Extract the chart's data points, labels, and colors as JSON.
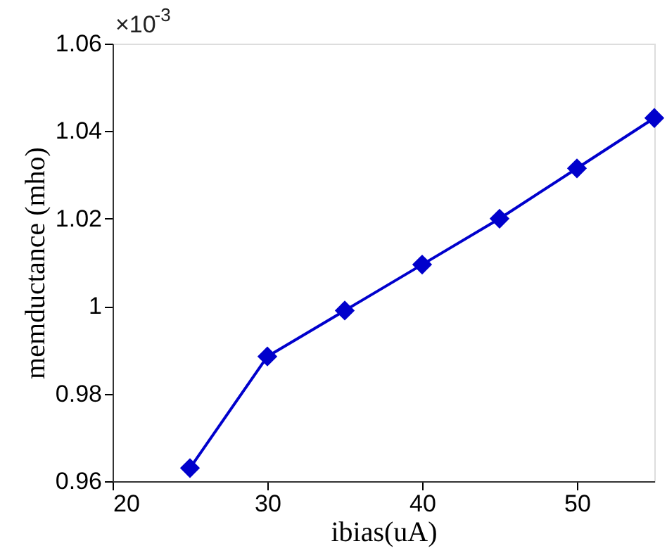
{
  "chart_data": {
    "type": "line",
    "xlabel": "ibias(uA)",
    "ylabel": "memductance (mho)",
    "x": [
      25,
      30,
      35,
      40,
      45,
      50,
      55
    ],
    "series": [
      {
        "color": "#0000cc",
        "values": [
          0.963,
          0.9885,
          0.999,
          1.0095,
          1.02,
          1.0315,
          1.043
        ]
      }
    ],
    "xlim": [
      20,
      55
    ],
    "xticks": [
      20,
      30,
      40,
      50
    ],
    "ylim": [
      0.96,
      1.06
    ],
    "yticks": [
      0.96,
      0.98,
      1,
      1.02,
      1.04,
      1.06
    ],
    "marker": "diamond",
    "line_style": "solid",
    "grid": false,
    "annotations": [
      "×10$^{-3}$"
    ]
  }
}
